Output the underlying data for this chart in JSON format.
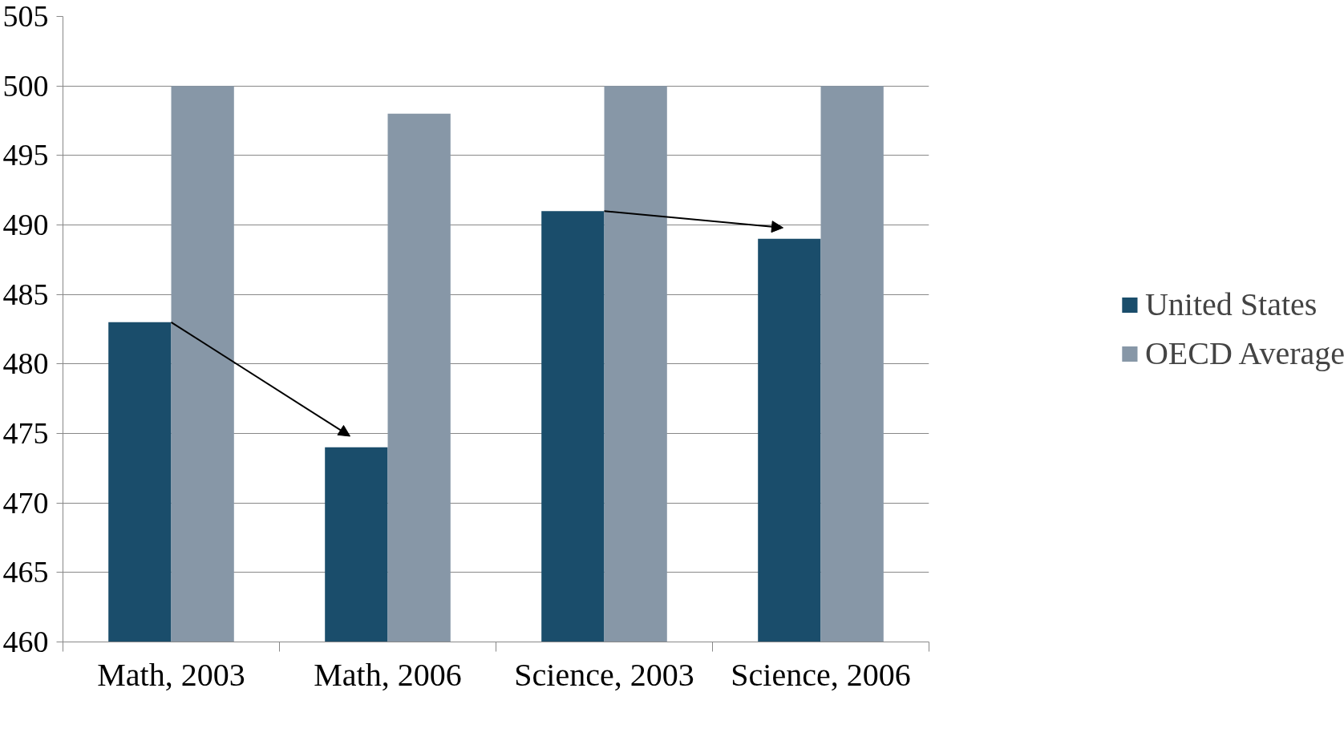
{
  "chart_data": {
    "type": "bar",
    "categories": [
      "Math, 2003",
      "Math, 2006",
      "Science, 2003",
      "Science, 2006"
    ],
    "series": [
      {
        "name": "United States",
        "color": "#1a4d6b",
        "values": [
          483,
          474,
          491,
          489
        ]
      },
      {
        "name": "OECD Average",
        "color": "#8797a7",
        "values": [
          500,
          498,
          500,
          500
        ]
      }
    ],
    "ylim": [
      460,
      505
    ],
    "yticks": [
      460,
      465,
      470,
      475,
      480,
      485,
      490,
      495,
      500,
      505
    ],
    "grid": "y",
    "legend": "right"
  }
}
